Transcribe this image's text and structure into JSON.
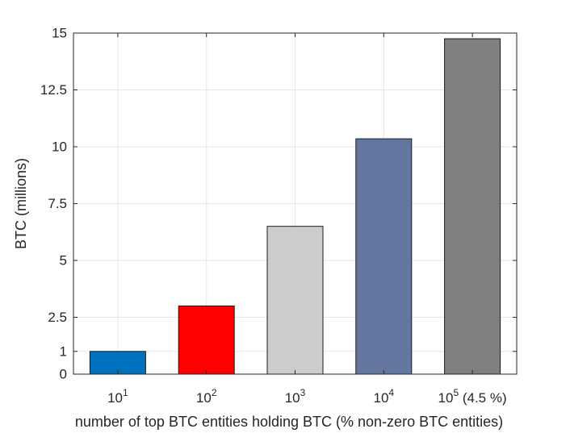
{
  "chart_data": {
    "type": "bar",
    "categories": [
      {
        "base": "10",
        "exp": "1",
        "suffix": ""
      },
      {
        "base": "10",
        "exp": "2",
        "suffix": ""
      },
      {
        "base": "10",
        "exp": "3",
        "suffix": ""
      },
      {
        "base": "10",
        "exp": "4",
        "suffix": ""
      },
      {
        "base": "10",
        "exp": "5",
        "suffix": " (4.5 %)"
      }
    ],
    "values": [
      1.0,
      3.0,
      6.5,
      10.35,
      14.75
    ],
    "colors": [
      "#0072bd",
      "#ff0000",
      "#cccccc",
      "#6477a0",
      "#808080"
    ],
    "xlabel": "number of top BTC entities holding BTC (% non-zero BTC entities)",
    "ylabel": "BTC (millions)",
    "ylim": [
      0,
      15
    ],
    "yticks": [
      0,
      1,
      2.5,
      5,
      7.5,
      10,
      12.5,
      15
    ],
    "ytick_labels": [
      "0",
      "1",
      "2.5",
      "5",
      "7.5",
      "10",
      "12.5",
      "15"
    ],
    "grid": true,
    "legend": "none"
  }
}
